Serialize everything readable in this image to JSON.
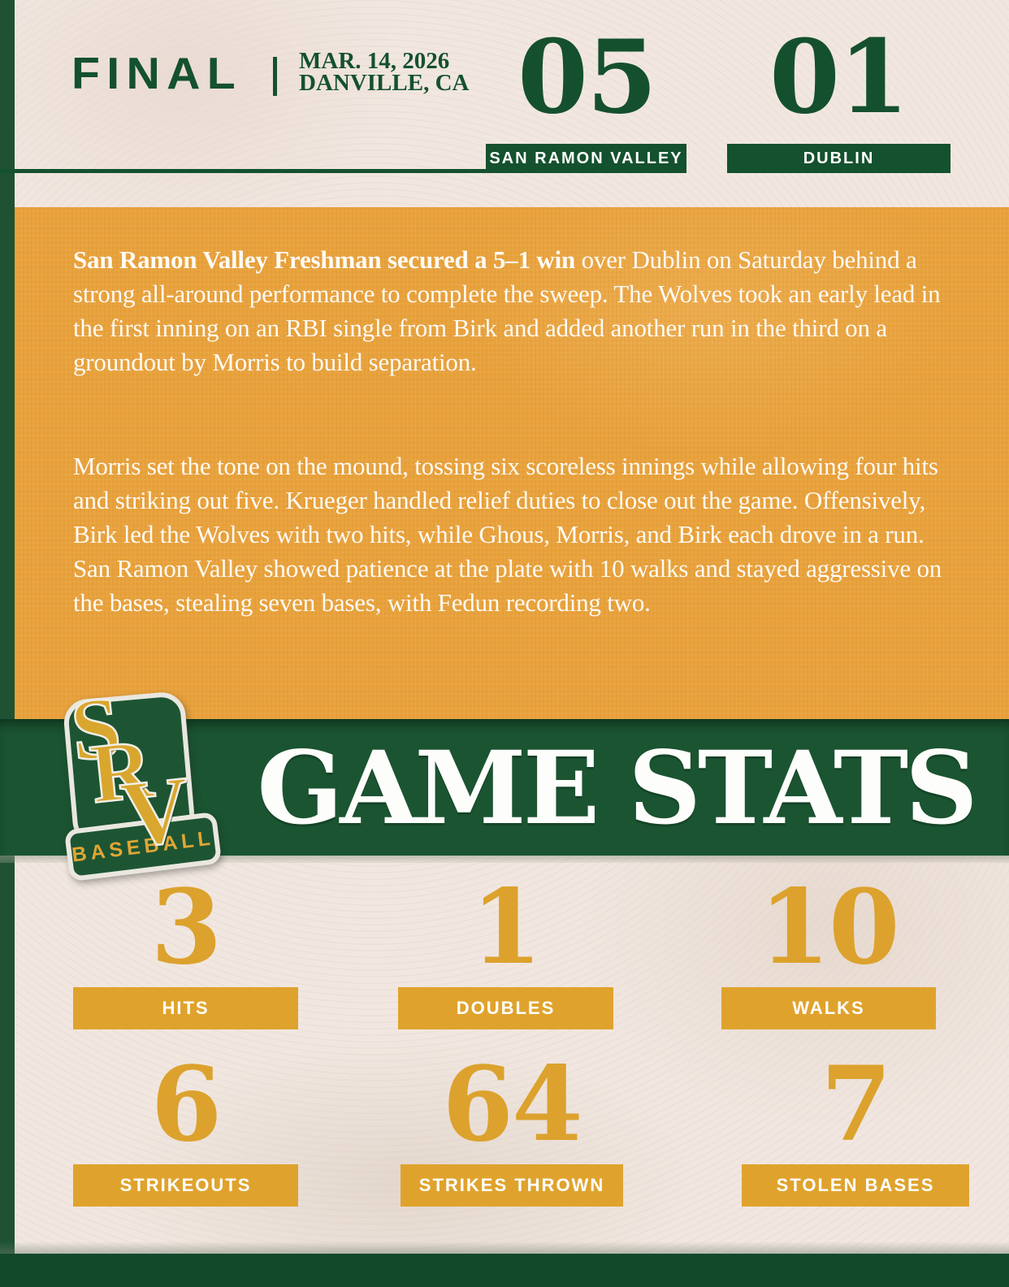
{
  "header": {
    "status": "FINAL",
    "date": "MAR. 14, 2026",
    "location": "DANVILLE, CA",
    "home": {
      "score": "05",
      "name": "SAN RAMON VALLEY"
    },
    "away": {
      "score": "01",
      "name": "DUBLIN"
    }
  },
  "recap": {
    "p1_bold": "San Ramon Valley Freshman secured a 5–1 win",
    "p1_rest": " over Dublin on Saturday behind a strong all-around performance to complete the sweep. The Wolves took an early lead in the first inning on an RBI single from Birk and added another run in the third on a groundout by Morris to build separation.",
    "p2": "Morris set the tone on the mound, tossing six scoreless innings while allowing four hits and striking out five. Krueger handled relief duties to close out the game. Offensively, Birk led the Wolves with two hits, while Ghous, Morris, and Birk each drove in a run. San Ramon Valley showed patience at the plate with 10 walks and stayed aggressive on the bases, stealing seven bases, with Fedun recording two."
  },
  "banner": {
    "title": "GAME STATS",
    "logo": {
      "letters": [
        "S",
        "R",
        "V"
      ],
      "sub": "BASEBALL"
    }
  },
  "stats": [
    {
      "value": "3",
      "label": "HITS"
    },
    {
      "value": "1",
      "label": "DOUBLES"
    },
    {
      "value": "10",
      "label": "WALKS"
    },
    {
      "value": "6",
      "label": "STRIKEOUTS"
    },
    {
      "value": "64",
      "label": "STRIKES THROWN"
    },
    {
      "value": "7",
      "label": "STOLEN BASES"
    }
  ],
  "colors": {
    "dark_green": "#14512E",
    "band_green": "#1A5431",
    "orange": "#E9A23C",
    "gold": "#DFA32D",
    "cream": "#F1E7E0",
    "white": "#FFFFFF"
  }
}
